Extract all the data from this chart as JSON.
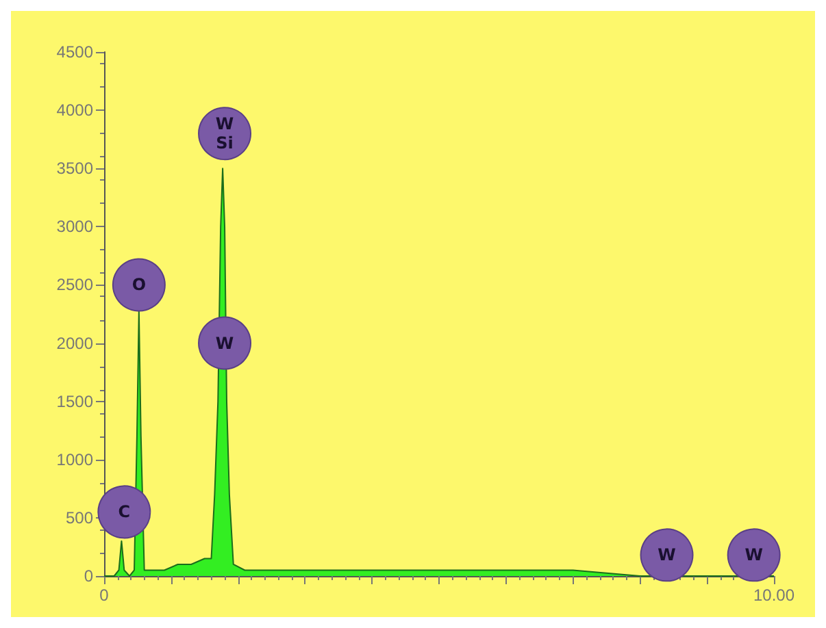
{
  "chart_data": {
    "type": "area",
    "x": [
      0,
      0.15,
      0.22,
      0.26,
      0.3,
      0.38,
      0.45,
      0.49,
      0.52,
      0.55,
      0.6,
      0.7,
      0.9,
      1.1,
      1.3,
      1.5,
      1.6,
      1.65,
      1.7,
      1.74,
      1.77,
      1.8,
      1.83,
      1.87,
      1.93,
      2.1,
      2.5,
      3,
      4,
      5,
      6,
      7,
      8,
      9,
      10
    ],
    "series": [
      {
        "color": "#33ee22",
        "values": [
          0,
          0,
          50,
          300,
          50,
          0,
          50,
          1200,
          2270,
          1200,
          50,
          50,
          50,
          100,
          100,
          150,
          150,
          700,
          1500,
          3000,
          3500,
          3000,
          1500,
          700,
          100,
          50,
          50,
          50,
          50,
          50,
          50,
          50,
          0,
          0,
          0
        ]
      }
    ],
    "xlim": [
      0,
      10
    ],
    "xticks": [
      0,
      {
        "value": 1,
        "label": null
      },
      {
        "value": 2,
        "label": null
      },
      {
        "value": 3,
        "label": null
      },
      {
        "value": 4,
        "label": null
      },
      {
        "value": 5,
        "label": null
      },
      {
        "value": 6,
        "label": null
      },
      {
        "value": 7,
        "label": null
      },
      {
        "value": 8,
        "label": null
      },
      {
        "value": 9,
        "label": null
      },
      {
        "value": 10,
        "label": "10.00"
      }
    ],
    "ylim": [
      0,
      4500
    ],
    "yticks": [
      0,
      500,
      1000,
      1500,
      2000,
      2500,
      3000,
      3500,
      4000,
      4500
    ],
    "annotations": [
      {
        "text": "C",
        "x": 0.3,
        "y": 550
      },
      {
        "text": "O",
        "x": 0.52,
        "y": 2500
      },
      {
        "text": "W\nSi",
        "x": 1.8,
        "y": 3800
      },
      {
        "text": "W",
        "x": 1.8,
        "y": 2000
      },
      {
        "text": "W",
        "x": 8.4,
        "y": 180
      },
      {
        "text": "W",
        "x": 9.7,
        "y": 180
      }
    ],
    "grid": false
  }
}
